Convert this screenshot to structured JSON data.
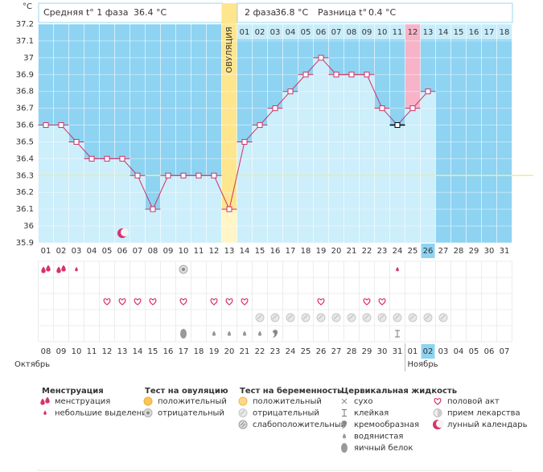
{
  "header": {
    "unit": "°C",
    "phase1_label": "Средняя t° 1 фаза",
    "phase1_value": "36.4 °C",
    "phase2_label": "2 фаза",
    "phase2_value": "36.8 °C",
    "diff_label": "Разница t°",
    "diff_value": "0.4 °C"
  },
  "chart_data": {
    "type": "line",
    "categories": [
      "01",
      "02",
      "03",
      "04",
      "05",
      "06",
      "07",
      "08",
      "09",
      "10",
      "11",
      "12",
      "13",
      "14",
      "15",
      "16",
      "17",
      "18",
      "19",
      "20",
      "21",
      "22",
      "23",
      "24",
      "25",
      "26",
      "27",
      "28",
      "29",
      "30",
      "31"
    ],
    "values": [
      36.6,
      36.6,
      36.5,
      36.4,
      36.4,
      36.4,
      36.3,
      36.1,
      36.3,
      36.3,
      36.3,
      36.3,
      36.1,
      36.5,
      36.6,
      36.7,
      36.8,
      36.9,
      37.0,
      36.9,
      36.9,
      36.9,
      36.7,
      36.6,
      36.7,
      36.8,
      null,
      null,
      null,
      null,
      null
    ],
    "color": "#cc3366",
    "ylim": [
      35.9,
      37.2
    ],
    "yticks": [
      35.9,
      36,
      36.1,
      36.2,
      36.3,
      36.4,
      36.5,
      36.6,
      36.7,
      36.8,
      36.9,
      37,
      37.1,
      37.2
    ],
    "coverline": 36.3,
    "ovulation_day": "13",
    "ovulation_label": "ОВУЛЯЦИЯ",
    "luteal_days": [
      "01",
      "02",
      "03",
      "04",
      "05",
      "06",
      "07",
      "08",
      "09",
      "10",
      "11",
      "12",
      "13",
      "14",
      "15",
      "16",
      "17",
      "18"
    ],
    "highlight_day": "25",
    "excluded_days": [
      "24"
    ],
    "today": "26"
  },
  "symbols": {
    "menstruation": [
      {
        "day": "01",
        "kind": "heavy"
      },
      {
        "day": "02",
        "kind": "heavy"
      },
      {
        "day": "03",
        "kind": "light"
      },
      {
        "day": "24",
        "kind": "light"
      }
    ],
    "ovulation_test": [
      {
        "day": "10",
        "kind": "ov_neg"
      }
    ],
    "intercourse": [
      {
        "day": "05",
        "kind": "heart"
      },
      {
        "day": "06",
        "kind": "heart"
      },
      {
        "day": "07",
        "kind": "heart"
      },
      {
        "day": "08",
        "kind": "heart"
      },
      {
        "day": "10",
        "kind": "heart"
      },
      {
        "day": "12",
        "kind": "heart"
      },
      {
        "day": "13",
        "kind": "heart"
      },
      {
        "day": "14",
        "kind": "heart"
      },
      {
        "day": "19",
        "kind": "heart"
      },
      {
        "day": "22",
        "kind": "heart"
      },
      {
        "day": "23",
        "kind": "heart"
      }
    ],
    "pregnancy_test": [
      {
        "day": "15",
        "kind": "preg_neg"
      },
      {
        "day": "16",
        "kind": "preg_neg"
      },
      {
        "day": "17",
        "kind": "preg_neg"
      },
      {
        "day": "18",
        "kind": "preg_neg"
      },
      {
        "day": "19",
        "kind": "preg_neg"
      },
      {
        "day": "20",
        "kind": "preg_neg"
      },
      {
        "day": "21",
        "kind": "preg_neg"
      },
      {
        "day": "22",
        "kind": "preg_neg"
      },
      {
        "day": "23",
        "kind": "preg_neg"
      },
      {
        "day": "24",
        "kind": "preg_neg"
      },
      {
        "day": "25",
        "kind": "preg_neg"
      },
      {
        "day": "26",
        "kind": "preg_neg"
      },
      {
        "day": "27",
        "kind": "preg_neg"
      }
    ],
    "cervical_fluid": [
      {
        "day": "10",
        "kind": "eggwhite"
      },
      {
        "day": "12",
        "kind": "watery"
      },
      {
        "day": "13",
        "kind": "watery"
      },
      {
        "day": "14",
        "kind": "watery"
      },
      {
        "day": "15",
        "kind": "watery"
      },
      {
        "day": "16",
        "kind": "creamy"
      },
      {
        "day": "24",
        "kind": "sticky"
      }
    ],
    "lunar": [
      {
        "day": "06",
        "kind": "moon"
      }
    ]
  },
  "calendar": {
    "dates": [
      "08",
      "09",
      "10",
      "11",
      "12",
      "13",
      "14",
      "15",
      "16",
      "17",
      "18",
      "19",
      "20",
      "21",
      "22",
      "23",
      "24",
      "25",
      "26",
      "27",
      "28",
      "29",
      "30",
      "31",
      "01",
      "02",
      "03",
      "04",
      "05",
      "06",
      "07"
    ],
    "weekend": [
      false,
      false,
      false,
      false,
      true,
      true,
      false,
      false,
      false,
      false,
      false,
      true,
      true,
      false,
      false,
      false,
      false,
      false,
      true,
      true,
      false,
      false,
      false,
      false,
      false,
      true,
      true,
      false,
      false,
      false,
      false
    ],
    "today": "02",
    "months": [
      "Октябрь",
      "Ноябрь"
    ]
  },
  "legend": [
    {
      "title": "Менструация",
      "items": [
        {
          "label": "менструация",
          "icon": "heavy"
        },
        {
          "label": "небольшие выделения",
          "icon": "light"
        }
      ]
    },
    {
      "title": "Тест на овуляцию",
      "items": [
        {
          "label": "положительный",
          "icon": "ov_pos"
        },
        {
          "label": "отрицательный",
          "icon": "ov_neg"
        }
      ]
    },
    {
      "title": "Тест на беременность",
      "items": [
        {
          "label": "положительный",
          "icon": "preg_pos"
        },
        {
          "label": "отрицательный",
          "icon": "preg_neg"
        },
        {
          "label": "слабоположительный",
          "icon": "preg_weak"
        }
      ]
    },
    {
      "title": "Цервикальная жидкость",
      "items": [
        {
          "label": "сухо",
          "icon": "dry"
        },
        {
          "label": "клейкая",
          "icon": "sticky"
        },
        {
          "label": "кремообразная",
          "icon": "creamy"
        },
        {
          "label": "водянистая",
          "icon": "watery"
        },
        {
          "label": "яичный белок",
          "icon": "eggwhite"
        }
      ]
    },
    {
      "items": [
        {
          "label": "половой акт",
          "icon": "heart"
        },
        {
          "label": "прием лекарства",
          "icon": "pill"
        },
        {
          "label": "лунный календарь",
          "icon": "moon"
        }
      ]
    }
  ]
}
